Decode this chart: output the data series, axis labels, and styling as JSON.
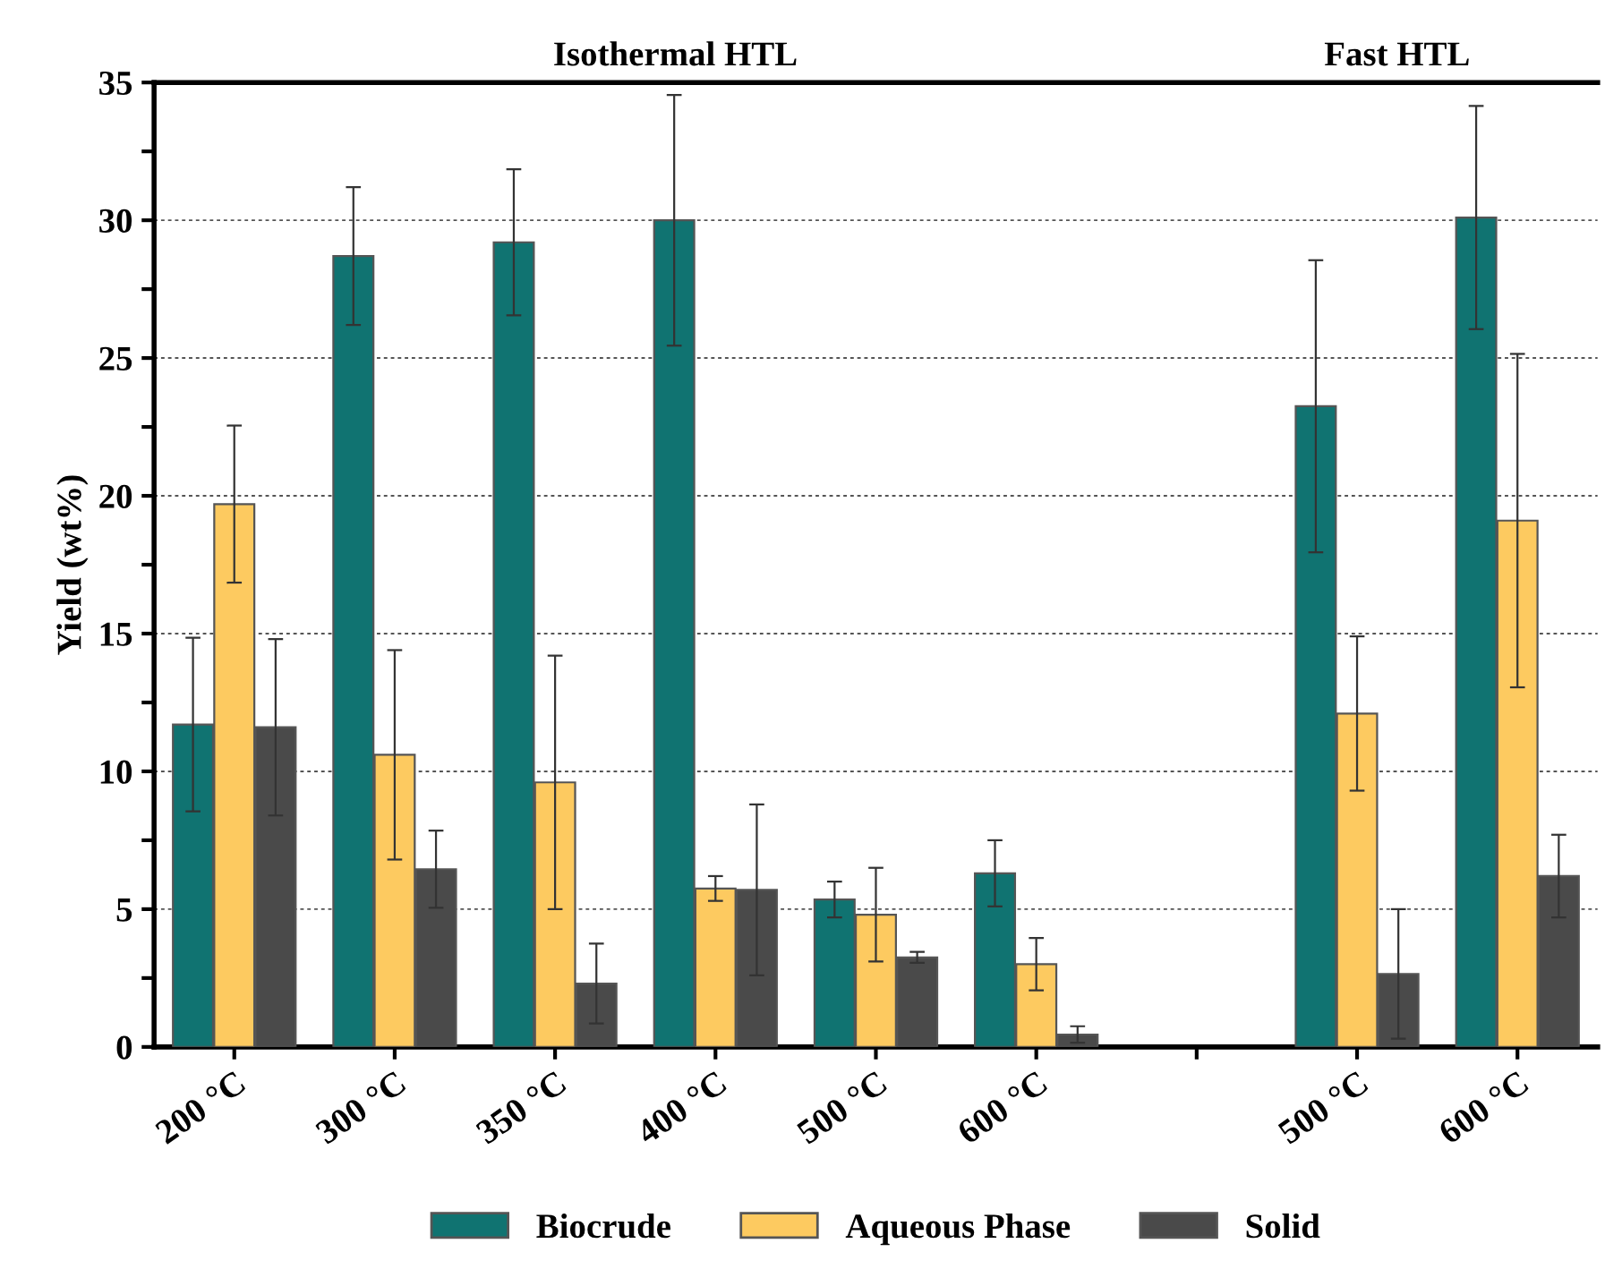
{
  "chart_data": {
    "type": "bar",
    "ylabel": "Yield (wt%)",
    "categories": [
      "200 °C",
      "300 °C",
      "350 °C",
      "400 °C",
      "500 °C",
      "600 °C",
      null,
      "500 °C",
      "600 °C"
    ],
    "series": [
      {
        "name": "Biocrude",
        "color": "#107371",
        "values": [
          11.7,
          28.7,
          29.2,
          30.0,
          5.35,
          6.3,
          null,
          23.25,
          30.1
        ],
        "errors": [
          3.15,
          2.5,
          2.65,
          4.55,
          0.65,
          1.2,
          null,
          5.3,
          4.05
        ]
      },
      {
        "name": "Aqueous Phase",
        "color": "#fdca60",
        "values": [
          19.7,
          10.6,
          9.6,
          5.75,
          4.8,
          3.0,
          null,
          12.1,
          19.1
        ],
        "errors": [
          2.85,
          3.8,
          4.6,
          0.45,
          1.7,
          0.95,
          null,
          2.8,
          6.05
        ]
      },
      {
        "name": "Solid",
        "color": "#4a4a4a",
        "values": [
          11.6,
          6.45,
          2.3,
          5.7,
          3.25,
          0.45,
          null,
          2.65,
          6.2
        ],
        "errors": [
          3.2,
          1.4,
          1.45,
          3.1,
          0.2,
          0.3,
          null,
          2.35,
          1.5
        ]
      }
    ],
    "ylim": [
      0,
      35
    ],
    "yticks": [
      0,
      {
        "value": 2.5,
        "label": null
      },
      5,
      {
        "value": 7.5,
        "label": null
      },
      10,
      {
        "value": 12.5,
        "label": null
      },
      15,
      {
        "value": 17.5,
        "label": null
      },
      20,
      {
        "value": 22.5,
        "label": null
      },
      25,
      {
        "value": 27.5,
        "label": null
      },
      30,
      {
        "value": 32.5,
        "label": null
      },
      35
    ],
    "grid": "y",
    "legend": "bottom",
    "annotations": [
      "Isothermal HTL",
      "Fast HTL"
    ]
  }
}
